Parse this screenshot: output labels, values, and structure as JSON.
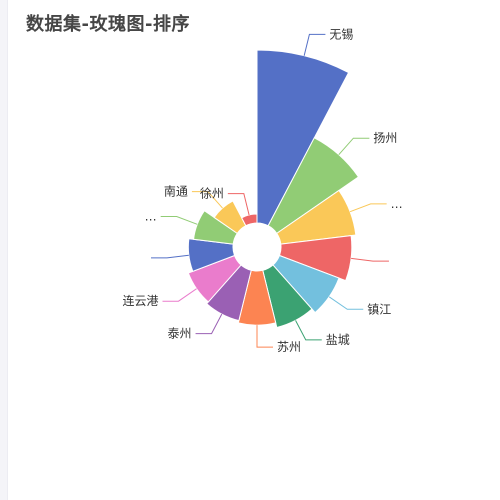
{
  "title": "数据集-玫瑰图-排序",
  "chart_data": {
    "type": "pie",
    "variant": "rose",
    "sorted": "descending",
    "title": "数据集-玫瑰图-排序",
    "categories": [
      "无锡",
      "扬州",
      "…",
      "",
      "镇江",
      "盐城",
      "苏州",
      "泰州",
      "连云港",
      "",
      "…",
      "南通",
      "徐州"
    ],
    "values": [
      100,
      69,
      59,
      57,
      54,
      52,
      50,
      49,
      48,
      46,
      44,
      39,
      31
    ],
    "colors": [
      "#5470c6",
      "#91cc75",
      "#fac858",
      "#ee6666",
      "#73c0de",
      "#3ba272",
      "#fc8452",
      "#9a60b4",
      "#ea7ccc",
      "#5470c6",
      "#91cc75",
      "#fac858",
      "#ee6666"
    ],
    "legend": "none"
  }
}
